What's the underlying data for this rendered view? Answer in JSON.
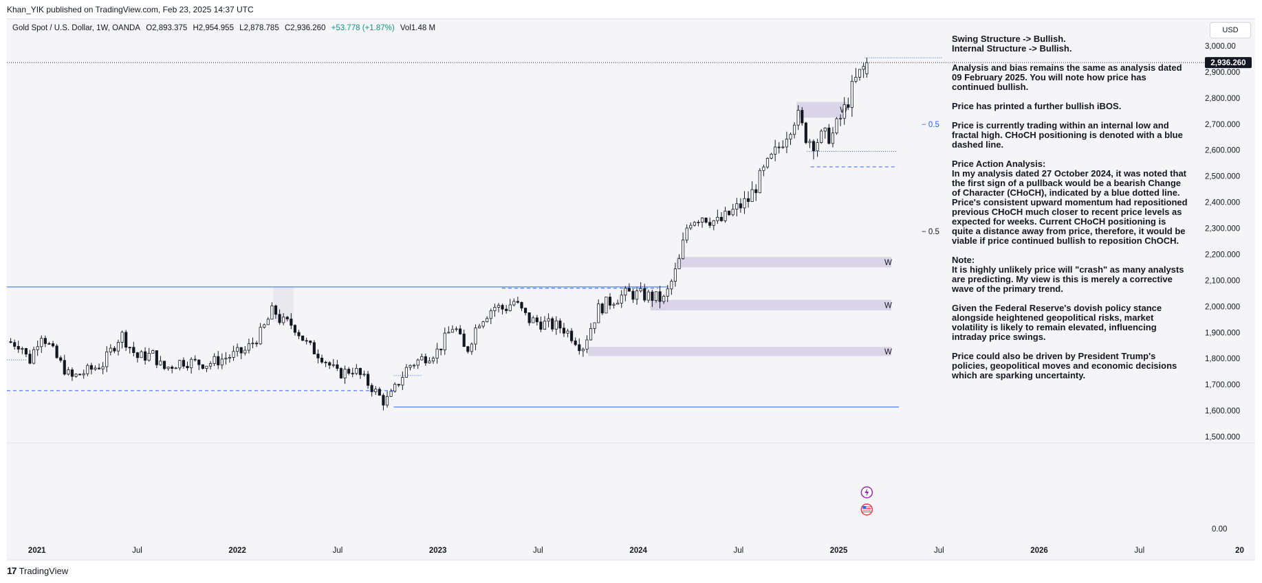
{
  "header": {
    "published_line": "Khan_YIK published on TradingView.com, Feb 23, 2025 14:37 UTC"
  },
  "legend": {
    "symbol": "Gold Spot / U.S. Dollar, 1W, OANDA",
    "open": "O2,893.375",
    "high": "H2,954.955",
    "low": "L2,878.785",
    "close": "C2,936.260",
    "change": "+53.778 (+1.87%)",
    "volume": "Vol1.48 M",
    "change_color": "#089981"
  },
  "currency_button": "USD",
  "price_badge": "2,936.260",
  "footer": {
    "brand": "TradingView",
    "logo": "17"
  },
  "analysis": [
    "Swing Structure -> Bullish.\nInternal Structure -> Bullish.",
    "Analysis and bias remains the same as analysis dated 09 February 2025.  You will note how price has continued bullish.",
    "Price has printed a further bullish iBOS.",
    "Price is currently trading within an internal low and fractal high.  CHoCH positioning is denoted with a blue dashed line.",
    "Price Action Analysis:\nIn my analysis dated 27 October 2024, it was noted that the first sign of a pullback would be a bearish Change of Character (CHoCH), indicated by a blue dotted line. Price's consistent upward momentum had repositioned previous CHoCH much closer to recent price levels as expected for weeks. Current CHoCH positioning is quite a distance away from price, therefore, it would be viable if price continued bullish to reposition ChOCH.",
    "Note:\nIt is highly unlikely price will \"crash\" as many analysts are predicting.  My view is this is merely a corrective wave of the primary trend.",
    "Given the Federal Reserve's dovish policy stance alongside heightened geopolitical risks, market volatility is likely to remain elevated, influencing intraday price swings.",
    "Price could also be driven by President Trump's policies, geopolitical moves and economic decisions which are sparking uncertainty."
  ],
  "chart_data": {
    "type": "candlestick",
    "symbol": "Gold Spot / U.S. Dollar",
    "interval": "1W",
    "y_ticks": [
      3000,
      2900,
      2800,
      2700,
      2600,
      2500,
      2400,
      2300,
      2200,
      2100,
      2000,
      1900,
      1800,
      1700,
      1600,
      1500
    ],
    "y_tick_labels": [
      "3,000.00",
      "2,900.000",
      "2,800.000",
      "2,700.000",
      "2,600.000",
      "2,500.000",
      "2,400.000",
      "2,300.000",
      "2,200.000",
      "2,100.000",
      "2,000.000",
      "1,900.000",
      "1,800.000",
      "1,700.000",
      "1,600.000",
      "1,500.000"
    ],
    "volume_axis_label": "0.00",
    "x_ticks": [
      {
        "t": 2021.0,
        "label": "2021",
        "bold": true
      },
      {
        "t": 2021.5,
        "label": "Jul",
        "bold": false
      },
      {
        "t": 2022.0,
        "label": "2022",
        "bold": true
      },
      {
        "t": 2022.5,
        "label": "Jul",
        "bold": false
      },
      {
        "t": 2023.0,
        "label": "2023",
        "bold": true
      },
      {
        "t": 2023.5,
        "label": "Jul",
        "bold": false
      },
      {
        "t": 2024.0,
        "label": "2024",
        "bold": true
      },
      {
        "t": 2024.5,
        "label": "Jul",
        "bold": false
      },
      {
        "t": 2025.0,
        "label": "2025",
        "bold": true
      },
      {
        "t": 2025.5,
        "label": "Jul",
        "bold": false
      },
      {
        "t": 2026.0,
        "label": "2026",
        "bold": true
      },
      {
        "t": 2026.5,
        "label": "Jul",
        "bold": false
      },
      {
        "t": 2027.0,
        "label": "20",
        "bold": true
      }
    ],
    "x_range": [
      2020.85,
      2027.06
    ],
    "y_range": [
      1470,
      3050
    ],
    "anchors": [
      [
        2020.85,
        1865
      ],
      [
        2020.92,
        1855
      ],
      [
        2020.96,
        1785
      ],
      [
        2021.02,
        1900
      ],
      [
        2021.1,
        1800
      ],
      [
        2021.17,
        1725
      ],
      [
        2021.26,
        1755
      ],
      [
        2021.33,
        1780
      ],
      [
        2021.42,
        1895
      ],
      [
        2021.5,
        1805
      ],
      [
        2021.58,
        1815
      ],
      [
        2021.63,
        1760
      ],
      [
        2021.72,
        1790
      ],
      [
        2021.85,
        1780
      ],
      [
        2021.93,
        1800
      ],
      [
        2022.04,
        1830
      ],
      [
        2022.12,
        1900
      ],
      [
        2022.18,
        1990
      ],
      [
        2022.22,
        1940
      ],
      [
        2022.28,
        1930
      ],
      [
        2022.35,
        1850
      ],
      [
        2022.42,
        1810
      ],
      [
        2022.5,
        1740
      ],
      [
        2022.58,
        1760
      ],
      [
        2022.67,
        1690
      ],
      [
        2022.73,
        1635
      ],
      [
        2022.76,
        1650
      ],
      [
        2022.85,
        1770
      ],
      [
        2022.92,
        1800
      ],
      [
        2023.0,
        1830
      ],
      [
        2023.08,
        1930
      ],
      [
        2023.14,
        1820
      ],
      [
        2023.2,
        1940
      ],
      [
        2023.28,
        2000
      ],
      [
        2023.33,
        1990
      ],
      [
        2023.38,
        2020
      ],
      [
        2023.45,
        1950
      ],
      [
        2023.55,
        1930
      ],
      [
        2023.62,
        1920
      ],
      [
        2023.68,
        1880
      ],
      [
        2023.72,
        1840
      ],
      [
        2023.8,
        1990
      ],
      [
        2023.88,
        2030
      ],
      [
        2023.95,
        2050
      ],
      [
        2024.05,
        2040
      ],
      [
        2024.13,
        2025
      ],
      [
        2024.2,
        2160
      ],
      [
        2024.25,
        2330
      ],
      [
        2024.32,
        2350
      ],
      [
        2024.4,
        2320
      ],
      [
        2024.48,
        2370
      ],
      [
        2024.55,
        2410
      ],
      [
        2024.62,
        2510
      ],
      [
        2024.7,
        2610
      ],
      [
        2024.79,
        2740
      ],
      [
        2024.83,
        2660
      ],
      [
        2024.87,
        2630
      ],
      [
        2024.92,
        2650
      ],
      [
        2024.97,
        2660
      ],
      [
        2025.02,
        2740
      ],
      [
        2025.08,
        2860
      ],
      [
        2025.14,
        2936.26
      ]
    ],
    "last_bar": {
      "open": 2893.375,
      "high": 2954.955,
      "low": 2878.785,
      "close": 2936.26
    },
    "zones": [
      {
        "t0": 2024.79,
        "t1": 2025.04,
        "lo": 2725,
        "hi": 2785,
        "label": "W",
        "color": "#d9d4e7"
      },
      {
        "t0": 2024.19,
        "t1": 2027.0,
        "lo": 2150,
        "hi": 2190,
        "label": "W",
        "color": "#d9d4e7"
      },
      {
        "t0": 2024.06,
        "t1": 2027.0,
        "lo": 1985,
        "hi": 2025,
        "label": "W",
        "color": "#d9d4e7"
      },
      {
        "t0": 2023.75,
        "t1": 2027.0,
        "lo": 1810,
        "hi": 1845,
        "label": "W",
        "color": "#d9d4e7"
      },
      {
        "t0": 2022.18,
        "t1": 2022.28,
        "lo": 1940,
        "hi": 2075,
        "label": "",
        "color": "#e8e8ee"
      }
    ],
    "lines": [
      {
        "t0": 2020.85,
        "t1": 2024.15,
        "price": 2075,
        "style": "solid",
        "color": "#2962ff"
      },
      {
        "t0": 2022.78,
        "t1": 2027.05,
        "price": 1614,
        "style": "solid",
        "color": "#2962ff"
      },
      {
        "t0": 2020.85,
        "t1": 2022.78,
        "price": 1677,
        "style": "dashed",
        "color": "#2962ff"
      },
      {
        "t0": 2023.32,
        "t1": 2024.1,
        "price": 2070,
        "style": "dashed",
        "color": "#2962ff"
      },
      {
        "t0": 2024.86,
        "t1": 2027.0,
        "price": 2536,
        "style": "dashed",
        "color": "#2962ff"
      },
      {
        "t0": 2024.84,
        "t1": 2027.0,
        "price": 2595,
        "style": "dotted",
        "color": "#2962ff"
      },
      {
        "t0": 2025.13,
        "t1": 2027.0,
        "price": 2955,
        "style": "dotted",
        "color": "#2962ff"
      },
      {
        "t0": 2022.78,
        "t1": 2022.92,
        "price": 1735,
        "style": "dotted",
        "color": "#2962ff"
      },
      {
        "t0": 2020.85,
        "t1": 2020.95,
        "price": 1795,
        "style": "dotted",
        "color": "#2962ff"
      }
    ],
    "fib_labels": [
      {
        "price": 2700,
        "label": "0.5",
        "color": "#2962ff"
      },
      {
        "price": 2288,
        "label": "0.5",
        "color": "#131722"
      }
    ],
    "current_price_line": {
      "price": 2936.26,
      "color": "#131722"
    }
  },
  "colors": {
    "bull_body": "#ffffff",
    "bear_body": "#131722",
    "wick": "#131722",
    "background": "#f5f4f6",
    "grid_line": "#e0e3eb"
  }
}
